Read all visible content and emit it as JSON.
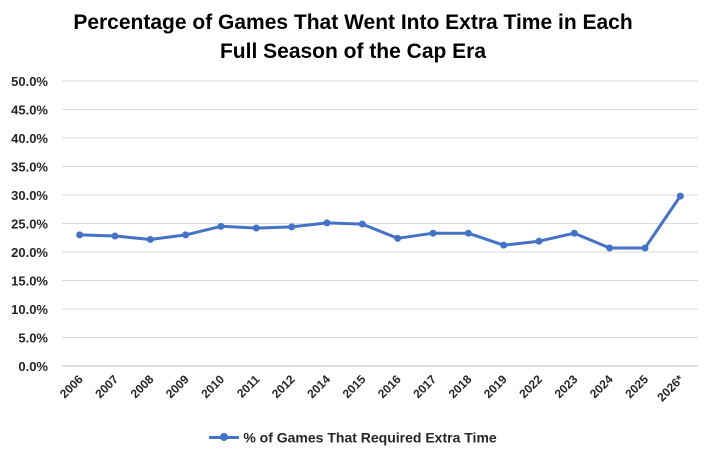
{
  "chart_data": {
    "type": "line",
    "title_line1": "Percentage of Games That Went Into Extra Time in Each",
    "title_line2": "Full Season of the Cap Era",
    "categories": [
      "2006",
      "2007",
      "2008",
      "2009",
      "2010",
      "2011",
      "2012",
      "2014",
      "2015",
      "2016",
      "2017",
      "2018",
      "2019",
      "2022",
      "2023",
      "2024",
      "2025",
      "2026*"
    ],
    "series": [
      {
        "name": "% of Games That Required Extra Time",
        "color": "#4472C4",
        "values": [
          23.0,
          22.8,
          22.2,
          23.0,
          24.5,
          24.2,
          24.4,
          25.1,
          24.9,
          22.4,
          23.3,
          23.3,
          21.2,
          21.9,
          23.3,
          20.7,
          20.7,
          29.8
        ]
      }
    ],
    "y_ticks": [
      "0.0%",
      "5.0%",
      "10.0%",
      "15.0%",
      "20.0%",
      "25.0%",
      "30.0%",
      "35.0%",
      "40.0%",
      "45.0%",
      "50.0%"
    ],
    "ylim": [
      0,
      50
    ],
    "xlabel": "",
    "ylabel": "",
    "grid": true,
    "legend_position": "bottom"
  }
}
